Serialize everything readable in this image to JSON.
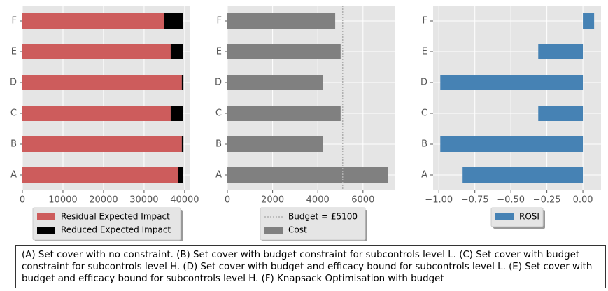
{
  "chart_data": [
    {
      "type": "bar",
      "orientation": "horizontal",
      "stacked": true,
      "grid": true,
      "categories": [
        "A",
        "B",
        "C",
        "D",
        "E",
        "F"
      ],
      "series": [
        {
          "name": "Residual Expected Impact",
          "color": "#cd5c5c",
          "values": [
            38450,
            39300,
            36550,
            39300,
            36550,
            35000
          ]
        },
        {
          "name": "Reduced Expected Impact",
          "color": "#000000",
          "values": [
            1200,
            400,
            3100,
            400,
            3100,
            4600
          ]
        }
      ],
      "xlim": [
        0,
        41400
      ],
      "xticks": [
        0,
        10000,
        20000,
        30000,
        40000
      ]
    },
    {
      "type": "bar",
      "orientation": "horizontal",
      "grid": true,
      "categories": [
        "A",
        "B",
        "C",
        "D",
        "E",
        "F"
      ],
      "reference_line": {
        "name": "Budget = £5100",
        "value": 5100,
        "color": "#b0b0b0"
      },
      "series": [
        {
          "name": "Cost",
          "color": "#808080",
          "values": [
            7120,
            4240,
            5010,
            4240,
            5010,
            4770
          ]
        }
      ],
      "xlim": [
        0,
        7430
      ],
      "xticks": [
        0,
        2000,
        4000,
        6000
      ]
    },
    {
      "type": "bar",
      "orientation": "horizontal",
      "grid": true,
      "categories": [
        "A",
        "B",
        "C",
        "D",
        "E",
        "F"
      ],
      "series": [
        {
          "name": "ROSI",
          "color": "#4682b4",
          "values": [
            -0.835,
            -0.99,
            -0.31,
            -0.99,
            -0.31,
            0.078
          ]
        }
      ],
      "xlim": [
        -1.04,
        0.126
      ],
      "xticks": [
        {
          "value": -1,
          "label": "−1.00"
        },
        {
          "value": -0.75,
          "label": "−0.75"
        },
        {
          "value": -0.5,
          "label": "−0.50"
        },
        {
          "value": -0.25,
          "label": "−0.25"
        },
        {
          "value": 0,
          "label": "0.00"
        }
      ]
    }
  ],
  "caption": "(A) Set cover with no constraint. (B) Set cover with budget constraint for subcontrols level L. (C) Set cover with budget constraint for subcontrols level H. (D) Set cover with budget and efficacy bound for subcontrols level L. (E) Set cover with budget and efficacy bound for subcontrols level H. (F) Knapsack Optimisation with budget"
}
